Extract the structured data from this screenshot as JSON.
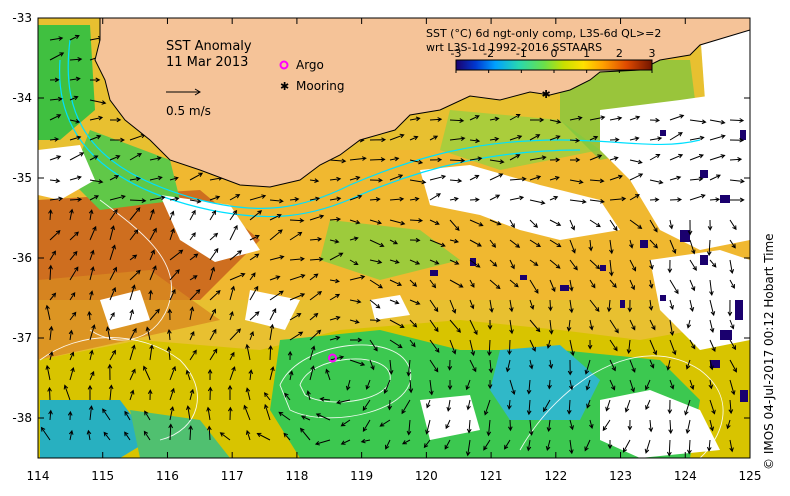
{
  "title": {
    "line1": "SST Anomaly",
    "line2": "11 Mar 2013"
  },
  "header": {
    "line1": "SST (°C) 6d ngt-only comp, L3S-6d QL>=2",
    "line2": "wrt L3S-1d 1992-2016 SSTAARS"
  },
  "velocity_scale": {
    "label": "0.5 m/s"
  },
  "legend": {
    "argo_label": "Argo",
    "mooring_label": "Mooring"
  },
  "colorbar": {
    "min": -3,
    "max": 3,
    "ticks": [
      "-3",
      "-2",
      "-1",
      "0",
      "1",
      "2",
      "3"
    ],
    "colors": [
      "#1a006e",
      "#0038d0",
      "#00a0ff",
      "#28d8b0",
      "#6ae04a",
      "#c8e000",
      "#ffe000",
      "#ffa000",
      "#e04a00",
      "#a01400",
      "#701400"
    ]
  },
  "axes": {
    "x_ticks": [
      "114",
      "115",
      "116",
      "117",
      "118",
      "119",
      "120",
      "121",
      "122",
      "123",
      "124",
      "125"
    ],
    "y_ticks": [
      "-33",
      "-34",
      "-35",
      "-36",
      "-37",
      "-38"
    ],
    "lon_range": [
      114,
      125
    ],
    "lat_range": [
      -38.5,
      -33
    ]
  },
  "markers": {
    "argo": {
      "lon": 118.55,
      "lat": -37.25
    },
    "mooring": {
      "lon": 121.85,
      "lat": -33.95
    }
  },
  "credit": "© IMOS 04-Jul-2017 00:12 Hobart Time",
  "colors": {
    "land": "#f5c398",
    "coast": "#000000",
    "current_line": "#00e0ff"
  }
}
